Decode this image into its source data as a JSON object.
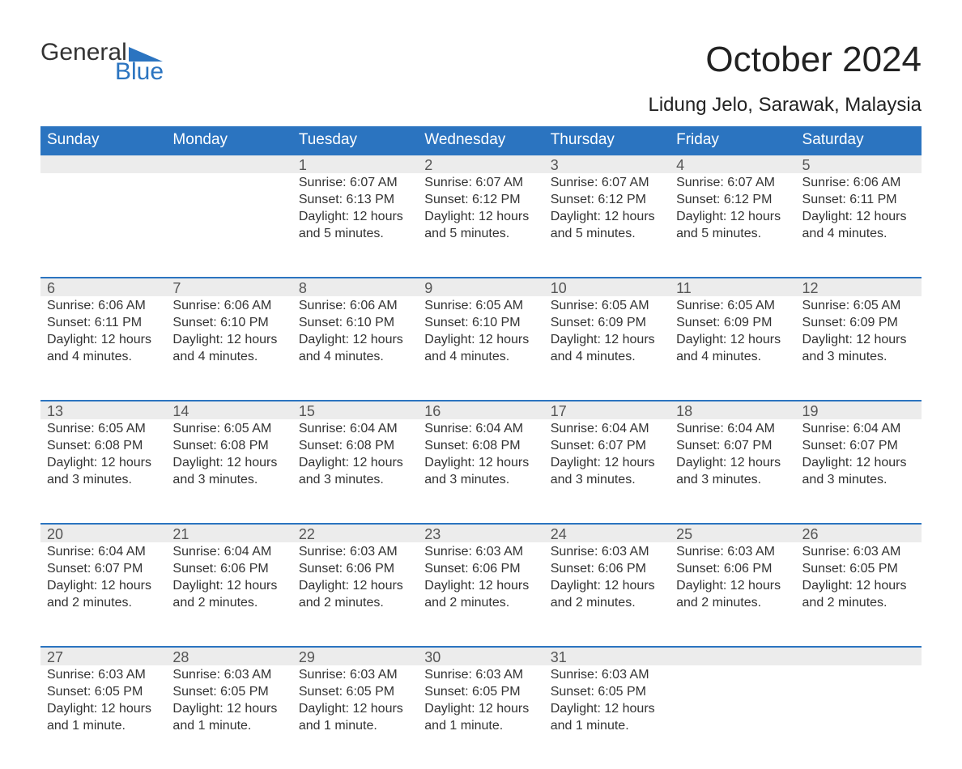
{
  "logo": {
    "word1": "General",
    "word2": "Blue",
    "accent_color": "#2b74c0"
  },
  "title": "October 2024",
  "location": "Lidung Jelo, Sarawak, Malaysia",
  "colors": {
    "header_bg": "#2b74c0",
    "header_text": "#ffffff",
    "daynum_bg": "#ececec",
    "daynum_border": "#2b74c0",
    "text": "#333333",
    "background": "#ffffff"
  },
  "typography": {
    "title_fontsize": 44,
    "location_fontsize": 24,
    "weekday_fontsize": 19,
    "daynum_fontsize": 18,
    "detail_fontsize": 16
  },
  "weekdays": [
    "Sunday",
    "Monday",
    "Tuesday",
    "Wednesday",
    "Thursday",
    "Friday",
    "Saturday"
  ],
  "weeks": [
    [
      null,
      null,
      {
        "n": "1",
        "sunrise": "6:07 AM",
        "sunset": "6:13 PM",
        "daylight": "12 hours and 5 minutes."
      },
      {
        "n": "2",
        "sunrise": "6:07 AM",
        "sunset": "6:12 PM",
        "daylight": "12 hours and 5 minutes."
      },
      {
        "n": "3",
        "sunrise": "6:07 AM",
        "sunset": "6:12 PM",
        "daylight": "12 hours and 5 minutes."
      },
      {
        "n": "4",
        "sunrise": "6:07 AM",
        "sunset": "6:12 PM",
        "daylight": "12 hours and 5 minutes."
      },
      {
        "n": "5",
        "sunrise": "6:06 AM",
        "sunset": "6:11 PM",
        "daylight": "12 hours and 4 minutes."
      }
    ],
    [
      {
        "n": "6",
        "sunrise": "6:06 AM",
        "sunset": "6:11 PM",
        "daylight": "12 hours and 4 minutes."
      },
      {
        "n": "7",
        "sunrise": "6:06 AM",
        "sunset": "6:10 PM",
        "daylight": "12 hours and 4 minutes."
      },
      {
        "n": "8",
        "sunrise": "6:06 AM",
        "sunset": "6:10 PM",
        "daylight": "12 hours and 4 minutes."
      },
      {
        "n": "9",
        "sunrise": "6:05 AM",
        "sunset": "6:10 PM",
        "daylight": "12 hours and 4 minutes."
      },
      {
        "n": "10",
        "sunrise": "6:05 AM",
        "sunset": "6:09 PM",
        "daylight": "12 hours and 4 minutes."
      },
      {
        "n": "11",
        "sunrise": "6:05 AM",
        "sunset": "6:09 PM",
        "daylight": "12 hours and 4 minutes."
      },
      {
        "n": "12",
        "sunrise": "6:05 AM",
        "sunset": "6:09 PM",
        "daylight": "12 hours and 3 minutes."
      }
    ],
    [
      {
        "n": "13",
        "sunrise": "6:05 AM",
        "sunset": "6:08 PM",
        "daylight": "12 hours and 3 minutes."
      },
      {
        "n": "14",
        "sunrise": "6:05 AM",
        "sunset": "6:08 PM",
        "daylight": "12 hours and 3 minutes."
      },
      {
        "n": "15",
        "sunrise": "6:04 AM",
        "sunset": "6:08 PM",
        "daylight": "12 hours and 3 minutes."
      },
      {
        "n": "16",
        "sunrise": "6:04 AM",
        "sunset": "6:08 PM",
        "daylight": "12 hours and 3 minutes."
      },
      {
        "n": "17",
        "sunrise": "6:04 AM",
        "sunset": "6:07 PM",
        "daylight": "12 hours and 3 minutes."
      },
      {
        "n": "18",
        "sunrise": "6:04 AM",
        "sunset": "6:07 PM",
        "daylight": "12 hours and 3 minutes."
      },
      {
        "n": "19",
        "sunrise": "6:04 AM",
        "sunset": "6:07 PM",
        "daylight": "12 hours and 3 minutes."
      }
    ],
    [
      {
        "n": "20",
        "sunrise": "6:04 AM",
        "sunset": "6:07 PM",
        "daylight": "12 hours and 2 minutes."
      },
      {
        "n": "21",
        "sunrise": "6:04 AM",
        "sunset": "6:06 PM",
        "daylight": "12 hours and 2 minutes."
      },
      {
        "n": "22",
        "sunrise": "6:03 AM",
        "sunset": "6:06 PM",
        "daylight": "12 hours and 2 minutes."
      },
      {
        "n": "23",
        "sunrise": "6:03 AM",
        "sunset": "6:06 PM",
        "daylight": "12 hours and 2 minutes."
      },
      {
        "n": "24",
        "sunrise": "6:03 AM",
        "sunset": "6:06 PM",
        "daylight": "12 hours and 2 minutes."
      },
      {
        "n": "25",
        "sunrise": "6:03 AM",
        "sunset": "6:06 PM",
        "daylight": "12 hours and 2 minutes."
      },
      {
        "n": "26",
        "sunrise": "6:03 AM",
        "sunset": "6:05 PM",
        "daylight": "12 hours and 2 minutes."
      }
    ],
    [
      {
        "n": "27",
        "sunrise": "6:03 AM",
        "sunset": "6:05 PM",
        "daylight": "12 hours and 1 minute."
      },
      {
        "n": "28",
        "sunrise": "6:03 AM",
        "sunset": "6:05 PM",
        "daylight": "12 hours and 1 minute."
      },
      {
        "n": "29",
        "sunrise": "6:03 AM",
        "sunset": "6:05 PM",
        "daylight": "12 hours and 1 minute."
      },
      {
        "n": "30",
        "sunrise": "6:03 AM",
        "sunset": "6:05 PM",
        "daylight": "12 hours and 1 minute."
      },
      {
        "n": "31",
        "sunrise": "6:03 AM",
        "sunset": "6:05 PM",
        "daylight": "12 hours and 1 minute."
      },
      null,
      null
    ]
  ],
  "labels": {
    "sunrise": "Sunrise: ",
    "sunset": "Sunset: ",
    "daylight": "Daylight: "
  }
}
